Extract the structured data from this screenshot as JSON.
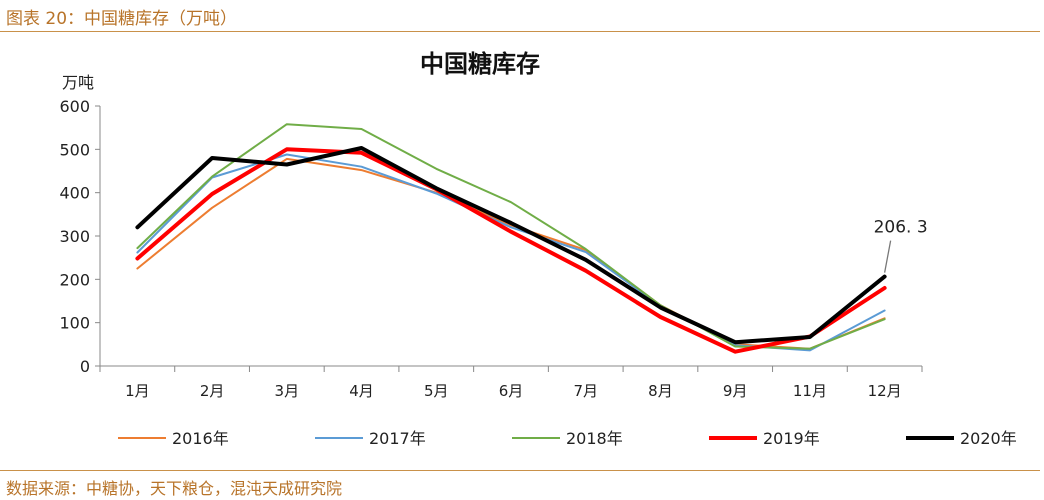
{
  "caption": "图表 20：中国糖库存（万吨）",
  "source": "数据来源：中糖协，天下粮仓，混沌天成研究院",
  "colors": {
    "accent": "#b8742a",
    "rule": "#c9914a"
  },
  "chart_data": {
    "type": "line",
    "title": "中国糖库存",
    "ylabel": "万吨",
    "xlabel": "",
    "categories": [
      "1月",
      "2月",
      "3月",
      "4月",
      "5月",
      "6月",
      "7月",
      "8月",
      "9月",
      "11月",
      "12月"
    ],
    "ylim": [
      0,
      600
    ],
    "yticks": [
      0,
      100,
      200,
      300,
      400,
      500,
      600
    ],
    "grid": false,
    "legend_position": "bottom",
    "series": [
      {
        "name": "2016年",
        "color": "#ed7d31",
        "width": 2,
        "values": [
          225,
          365,
          478,
          452,
          400,
          325,
          268,
          140,
          50,
          40,
          110
        ]
      },
      {
        "name": "2017年",
        "color": "#5b9bd5",
        "width": 2,
        "values": [
          262,
          435,
          488,
          460,
          398,
          320,
          263,
          138,
          48,
          36,
          128
        ]
      },
      {
        "name": "2018年",
        "color": "#70ad47",
        "width": 2,
        "values": [
          272,
          437,
          558,
          547,
          455,
          378,
          270,
          140,
          45,
          40,
          108
        ]
      },
      {
        "name": "2019年",
        "color": "#ff0000",
        "width": 4,
        "values": [
          248,
          397,
          500,
          492,
          408,
          310,
          220,
          113,
          33,
          68,
          180
        ]
      },
      {
        "name": "2020年",
        "color": "#000000",
        "width": 4,
        "values": [
          320,
          480,
          465,
          503,
          410,
          330,
          245,
          135,
          55,
          67,
          206.3
        ]
      }
    ],
    "annotations": [
      {
        "text": "206. 3",
        "series": "2020年",
        "category": "12月",
        "value": 206.3
      }
    ]
  }
}
